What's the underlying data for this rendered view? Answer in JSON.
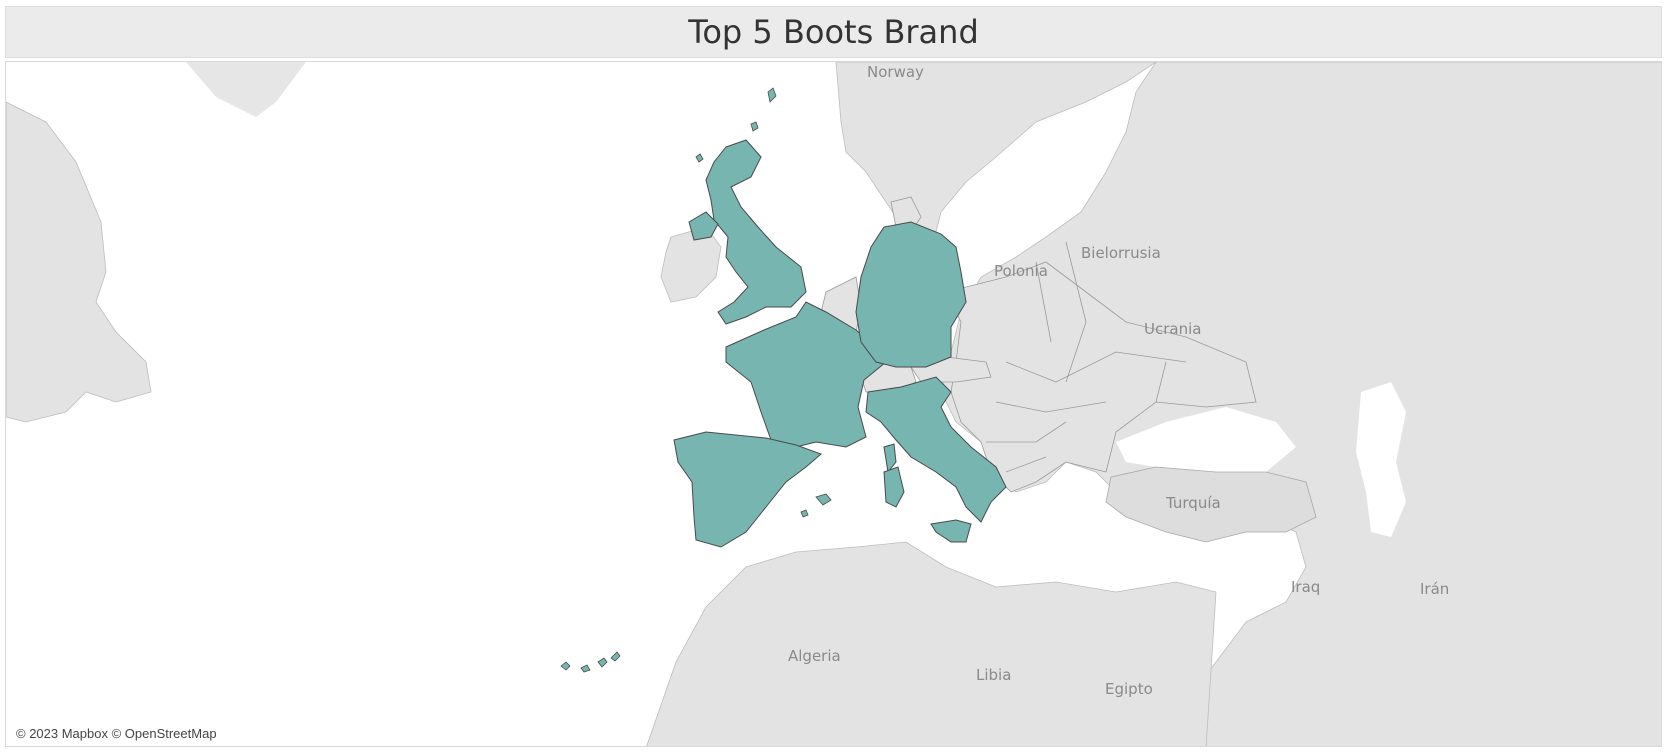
{
  "title": "Top 5 Boots Brand",
  "attribution": "© 2023 Mapbox © OpenStreetMap",
  "colors": {
    "highlight_fill": "#76b5b0",
    "highlight_stroke": "#4a4a4a",
    "land": "#e3e3e3",
    "water": "#ffffff",
    "border": "#9a9a9a",
    "label": "#8a8a8a",
    "title_bar": "#ebebeb"
  },
  "map": {
    "highlighted_countries": [
      "United Kingdom",
      "France",
      "Germany",
      "Spain",
      "Italy"
    ],
    "labels": {
      "norway": "Norway",
      "bielorrusia": "Bielorrusia",
      "polonia": "Polonia",
      "ucrania": "Ucrania",
      "turquia": "Turquía",
      "iraq": "Iraq",
      "iran": "Irán",
      "algeria": "Algeria",
      "libia": "Libia",
      "egipto": "Egipto"
    }
  }
}
